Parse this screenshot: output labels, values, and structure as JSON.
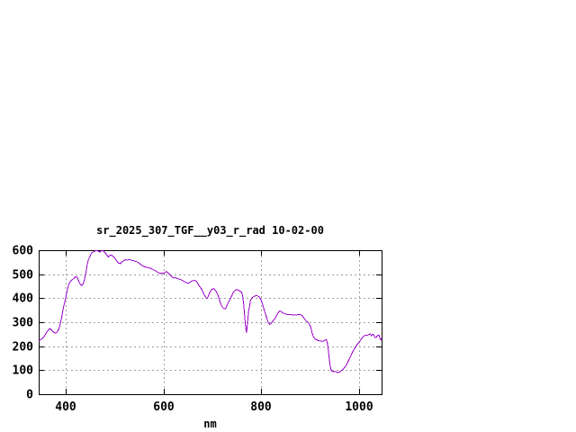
{
  "window": {
    "background": "#ffffff"
  },
  "chart_data": {
    "type": "line",
    "title": "sr_2025_307_TGF__y03_r_rad 10-02-00",
    "xlabel": "nm",
    "ylabel": "",
    "xlim": [
      345,
      1046
    ],
    "ylim": [
      0,
      600
    ],
    "xticks": [
      400,
      600,
      800,
      1000
    ],
    "yticks": [
      0,
      100,
      200,
      300,
      400,
      500,
      600
    ],
    "grid": true,
    "legend": "none",
    "colors": {
      "line": "#9900cc",
      "grid": "#a0a0a0",
      "axis": "#000000",
      "text": "#000000"
    },
    "series": [
      {
        "name": "sr_2025_307_TGF__y03_r_rad",
        "color": "#9900cc",
        "points": [
          [
            345,
            222
          ],
          [
            349,
            227
          ],
          [
            353,
            233
          ],
          [
            357,
            243
          ],
          [
            361,
            257
          ],
          [
            365,
            268
          ],
          [
            368,
            274
          ],
          [
            371,
            267
          ],
          [
            375,
            259
          ],
          [
            379,
            254
          ],
          [
            383,
            260
          ],
          [
            386,
            271
          ],
          [
            389,
            292
          ],
          [
            392,
            320
          ],
          [
            395,
            356
          ],
          [
            398,
            382
          ],
          [
            400,
            400
          ],
          [
            402,
            421
          ],
          [
            404,
            438
          ],
          [
            406,
            455
          ],
          [
            408,
            464
          ],
          [
            410,
            470
          ],
          [
            413,
            476
          ],
          [
            416,
            481
          ],
          [
            419,
            487
          ],
          [
            421,
            490
          ],
          [
            424,
            486
          ],
          [
            427,
            470
          ],
          [
            430,
            458
          ],
          [
            433,
            452
          ],
          [
            436,
            461
          ],
          [
            439,
            481
          ],
          [
            441,
            501
          ],
          [
            443,
            526
          ],
          [
            445,
            549
          ],
          [
            447,
            562
          ],
          [
            450,
            575
          ],
          [
            452,
            585
          ],
          [
            455,
            591
          ],
          [
            458,
            594
          ],
          [
            461,
            597
          ],
          [
            464,
            599
          ],
          [
            467,
            595
          ],
          [
            470,
            592
          ],
          [
            473,
            597
          ],
          [
            476,
            599
          ],
          [
            479,
            594
          ],
          [
            482,
            587
          ],
          [
            485,
            578
          ],
          [
            488,
            572
          ],
          [
            491,
            579
          ],
          [
            494,
            580
          ],
          [
            497,
            574
          ],
          [
            500,
            569
          ],
          [
            503,
            561
          ],
          [
            506,
            550
          ],
          [
            509,
            546
          ],
          [
            512,
            544
          ],
          [
            515,
            551
          ],
          [
            519,
            557
          ],
          [
            523,
            560
          ],
          [
            527,
            559
          ],
          [
            531,
            561
          ],
          [
            535,
            558
          ],
          [
            539,
            556
          ],
          [
            543,
            553
          ],
          [
            547,
            551
          ],
          [
            551,
            545
          ],
          [
            555,
            538
          ],
          [
            559,
            533
          ],
          [
            563,
            530
          ],
          [
            567,
            528
          ],
          [
            571,
            526
          ],
          [
            575,
            524
          ],
          [
            579,
            519
          ],
          [
            583,
            515
          ],
          [
            587,
            510
          ],
          [
            591,
            505
          ],
          [
            594,
            503
          ],
          [
            597,
            505
          ],
          [
            600,
            503
          ],
          [
            603,
            507
          ],
          [
            606,
            511
          ],
          [
            609,
            507
          ],
          [
            612,
            501
          ],
          [
            615,
            494
          ],
          [
            618,
            488
          ],
          [
            621,
            484
          ],
          [
            624,
            486
          ],
          [
            627,
            483
          ],
          [
            630,
            481
          ],
          [
            633,
            479
          ],
          [
            636,
            477
          ],
          [
            639,
            474
          ],
          [
            642,
            470
          ],
          [
            645,
            467
          ],
          [
            648,
            464
          ],
          [
            651,
            462
          ],
          [
            654,
            466
          ],
          [
            657,
            471
          ],
          [
            660,
            473
          ],
          [
            663,
            474
          ],
          [
            666,
            473
          ],
          [
            669,
            466
          ],
          [
            672,
            455
          ],
          [
            675,
            446
          ],
          [
            678,
            438
          ],
          [
            681,
            424
          ],
          [
            684,
            413
          ],
          [
            687,
            402
          ],
          [
            689,
            399
          ],
          [
            691,
            405
          ],
          [
            694,
            421
          ],
          [
            697,
            432
          ],
          [
            700,
            438
          ],
          [
            703,
            440
          ],
          [
            706,
            433
          ],
          [
            709,
            424
          ],
          [
            712,
            409
          ],
          [
            715,
            389
          ],
          [
            718,
            373
          ],
          [
            721,
            361
          ],
          [
            724,
            356
          ],
          [
            727,
            356
          ],
          [
            730,
            371
          ],
          [
            733,
            384
          ],
          [
            736,
            393
          ],
          [
            739,
            406
          ],
          [
            742,
            421
          ],
          [
            745,
            430
          ],
          [
            748,
            435
          ],
          [
            751,
            436
          ],
          [
            754,
            432
          ],
          [
            757,
            429
          ],
          [
            760,
            423
          ],
          [
            762,
            409
          ],
          [
            764,
            378
          ],
          [
            766,
            328
          ],
          [
            768,
            278
          ],
          [
            770,
            256
          ],
          [
            772,
            302
          ],
          [
            774,
            346
          ],
          [
            776,
            366
          ],
          [
            778,
            391
          ],
          [
            781,
            401
          ],
          [
            784,
            406
          ],
          [
            787,
            409
          ],
          [
            790,
            411
          ],
          [
            793,
            409
          ],
          [
            796,
            405
          ],
          [
            799,
            395
          ],
          [
            802,
            379
          ],
          [
            805,
            358
          ],
          [
            808,
            339
          ],
          [
            811,
            319
          ],
          [
            814,
            300
          ],
          [
            817,
            291
          ],
          [
            820,
            294
          ],
          [
            823,
            303
          ],
          [
            826,
            311
          ],
          [
            829,
            319
          ],
          [
            832,
            330
          ],
          [
            835,
            341
          ],
          [
            838,
            347
          ],
          [
            841,
            344
          ],
          [
            844,
            339
          ],
          [
            847,
            336
          ],
          [
            850,
            334
          ],
          [
            853,
            332
          ],
          [
            856,
            331
          ],
          [
            860,
            332
          ],
          [
            864,
            330
          ],
          [
            868,
            331
          ],
          [
            872,
            330
          ],
          [
            876,
            332
          ],
          [
            880,
            331
          ],
          [
            883,
            329
          ],
          [
            886,
            321
          ],
          [
            889,
            312
          ],
          [
            892,
            305
          ],
          [
            895,
            300
          ],
          [
            898,
            292
          ],
          [
            901,
            281
          ],
          [
            904,
            255
          ],
          [
            907,
            238
          ],
          [
            910,
            230
          ],
          [
            913,
            227
          ],
          [
            916,
            224
          ],
          [
            919,
            222
          ],
          [
            922,
            221
          ],
          [
            925,
            220
          ],
          [
            928,
            222
          ],
          [
            931,
            226
          ],
          [
            933,
            228
          ],
          [
            935,
            214
          ],
          [
            937,
            184
          ],
          [
            939,
            149
          ],
          [
            941,
            118
          ],
          [
            943,
            100
          ],
          [
            945,
            96
          ],
          [
            948,
            94
          ],
          [
            951,
            95
          ],
          [
            954,
            92
          ],
          [
            957,
            90
          ],
          [
            960,
            93
          ],
          [
            963,
            97
          ],
          [
            966,
            101
          ],
          [
            969,
            108
          ],
          [
            972,
            116
          ],
          [
            975,
            125
          ],
          [
            978,
            138
          ],
          [
            981,
            151
          ],
          [
            984,
            164
          ],
          [
            987,
            177
          ],
          [
            990,
            188
          ],
          [
            993,
            198
          ],
          [
            996,
            207
          ],
          [
            999,
            214
          ],
          [
            1002,
            222
          ],
          [
            1005,
            231
          ],
          [
            1008,
            239
          ],
          [
            1011,
            244
          ],
          [
            1014,
            246
          ],
          [
            1017,
            246
          ],
          [
            1020,
            249
          ],
          [
            1023,
            251
          ],
          [
            1025,
            243
          ],
          [
            1027,
            248
          ],
          [
            1029,
            250
          ],
          [
            1031,
            242
          ],
          [
            1033,
            237
          ],
          [
            1035,
            236
          ],
          [
            1037,
            243
          ],
          [
            1039,
            246
          ],
          [
            1041,
            245
          ],
          [
            1043,
            229
          ],
          [
            1045,
            226
          ],
          [
            1046,
            235
          ]
        ]
      }
    ]
  }
}
